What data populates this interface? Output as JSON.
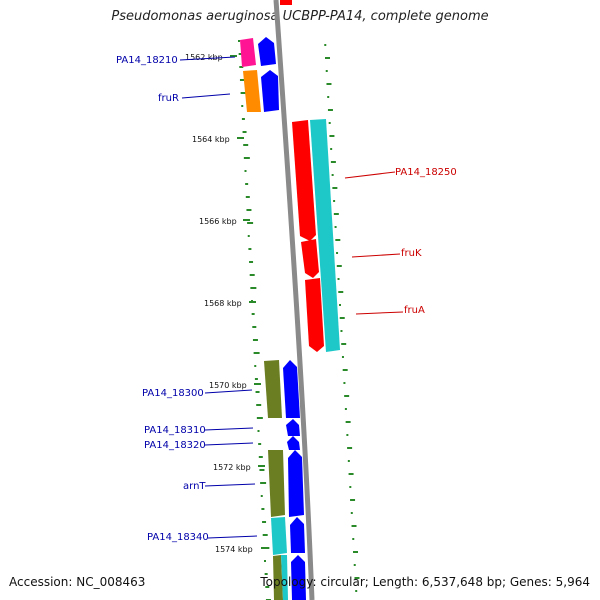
{
  "title": "Pseudomonas aeruginosa UCBPP-PA14, complete genome",
  "footer": {
    "accession": "Accession: NC_008463",
    "topology": "Topology: circular; Length: 6,537,648 bp; Genes: 5,964"
  },
  "ticks": [
    {
      "label": "1562 kbp"
    },
    {
      "label": "1564 kbp"
    },
    {
      "label": "1566 kbp"
    },
    {
      "label": "1568 kbp"
    },
    {
      "label": "1570 kbp"
    },
    {
      "label": "1572 kbp"
    },
    {
      "label": "1574 kbp"
    }
  ],
  "gene_labels": [
    {
      "text": "PA14_18210",
      "color": "#0000aa"
    },
    {
      "text": "fruR",
      "color": "#0000aa"
    },
    {
      "text": "PA14_18250",
      "color": "#cc0000"
    },
    {
      "text": "fruK",
      "color": "#cc0000"
    },
    {
      "text": "fruA",
      "color": "#cc0000"
    },
    {
      "text": "PA14_18300",
      "color": "#0000aa"
    },
    {
      "text": "PA14_18310",
      "color": "#0000aa"
    },
    {
      "text": "PA14_18320",
      "color": "#0000aa"
    },
    {
      "text": "arnT",
      "color": "#0000aa"
    },
    {
      "text": "PA14_18340",
      "color": "#0000aa"
    }
  ],
  "colors": {
    "backbone": "#8a8a8a",
    "gc_dash": "#2a8a2a",
    "blue_gene": "#0000ff",
    "red_gene": "#ff0000",
    "cyan_gene": "#1ec8c8",
    "olive_gene": "#6b7f22",
    "magenta_gene": "#ff1493",
    "orange_gene": "#ff8c00"
  }
}
